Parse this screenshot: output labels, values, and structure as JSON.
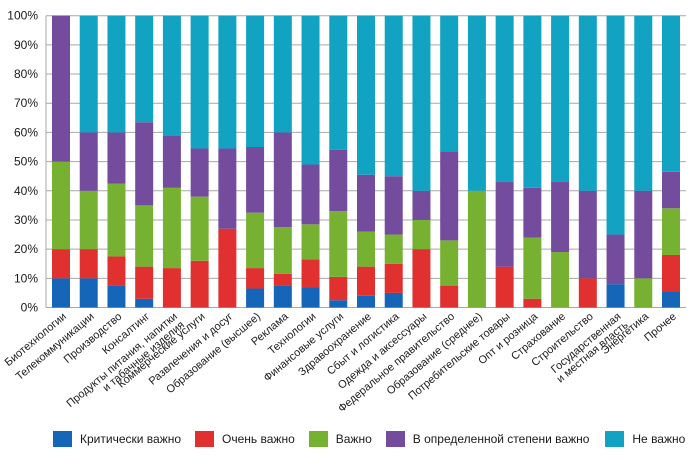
{
  "chart_data": {
    "type": "bar",
    "stacked": true,
    "title": "",
    "xlabel": "",
    "ylabel": "",
    "ylim": [
      0,
      100
    ],
    "yticks": [
      "0%",
      "10%",
      "20%",
      "30%",
      "40%",
      "50%",
      "60%",
      "70%",
      "80%",
      "90%",
      "100%"
    ],
    "grid": true,
    "legend_position": "bottom",
    "categories": [
      [
        "Биотехнологии"
      ],
      [
        "Телекоммуникации"
      ],
      [
        "Производство"
      ],
      [
        "Консалтинг"
      ],
      [
        "Продукты питания, напитки",
        "и табачные изделия"
      ],
      [
        "Коммерческие услуги"
      ],
      [
        "Развлечения и досуг"
      ],
      [
        "Образование (высшее)"
      ],
      [
        "Реклама"
      ],
      [
        "Технологии"
      ],
      [
        "Финансовые услуги"
      ],
      [
        "Здравоохранение"
      ],
      [
        "Сбыт и логистика"
      ],
      [
        "Одежда и аксессуары"
      ],
      [
        "Федеральное правительство"
      ],
      [
        "Образование (среднее)"
      ],
      [
        "Потребительские товары"
      ],
      [
        "Опт и розница"
      ],
      [
        "Страхование"
      ],
      [
        "Строительство"
      ],
      [
        "Государственная",
        "и местная власть"
      ],
      [
        "Энергетика"
      ],
      [
        "Прочее"
      ]
    ],
    "series": [
      {
        "name": "Критически важно",
        "color": "#1565b8",
        "values": [
          10,
          10,
          7.5,
          3,
          0,
          0,
          0,
          6.5,
          7.5,
          7,
          2.5,
          4,
          5,
          0,
          0,
          0,
          0,
          0,
          0,
          0,
          8,
          0,
          5.5
        ]
      },
      {
        "name": "Очень важно",
        "color": "#e03030",
        "values": [
          10,
          10,
          10,
          11,
          13.5,
          16,
          27,
          7,
          4,
          9.5,
          8,
          10,
          10,
          20,
          7.5,
          0,
          14,
          3,
          0,
          10,
          0,
          0,
          12.5
        ]
      },
      {
        "name": "Важно",
        "color": "#76b132",
        "values": [
          30,
          20,
          25,
          21,
          27.5,
          22,
          0,
          19,
          16,
          12,
          22.5,
          12,
          10,
          10,
          15.5,
          40,
          0,
          21,
          19,
          0,
          0,
          10,
          16
        ]
      },
      {
        "name": "В определенной степени важно",
        "color": "#744c9e",
        "values": [
          50,
          20,
          17.5,
          28.5,
          18,
          16.5,
          27.5,
          22.5,
          32.5,
          20.5,
          21,
          19.5,
          20,
          10,
          30.5,
          0,
          29,
          17,
          24,
          30,
          17,
          30,
          12.5
        ]
      },
      {
        "name": "Не важно",
        "color": "#12a3c2",
        "values": [
          0,
          40,
          40,
          36.5,
          41,
          45.5,
          45.5,
          45,
          40,
          51,
          46,
          54.5,
          55,
          60,
          46.5,
          60,
          57,
          59,
          57,
          60,
          75,
          60,
          53.5
        ]
      }
    ]
  }
}
